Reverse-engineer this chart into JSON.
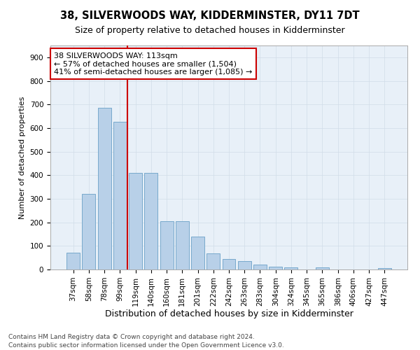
{
  "title": "38, SILVERWOODS WAY, KIDDERMINSTER, DY11 7DT",
  "subtitle": "Size of property relative to detached houses in Kidderminster",
  "xlabel": "Distribution of detached houses by size in Kidderminster",
  "ylabel": "Number of detached properties",
  "categories": [
    "37sqm",
    "58sqm",
    "78sqm",
    "99sqm",
    "119sqm",
    "140sqm",
    "160sqm",
    "181sqm",
    "201sqm",
    "222sqm",
    "242sqm",
    "263sqm",
    "283sqm",
    "304sqm",
    "324sqm",
    "345sqm",
    "365sqm",
    "386sqm",
    "406sqm",
    "427sqm",
    "447sqm"
  ],
  "values": [
    72,
    320,
    685,
    625,
    410,
    410,
    205,
    205,
    140,
    68,
    45,
    35,
    22,
    12,
    8,
    0,
    8,
    0,
    0,
    0,
    5
  ],
  "bar_color": "#b8d0e8",
  "bar_edge_color": "#6aa0c7",
  "vline_color": "#cc0000",
  "annotation_text": "38 SILVERWOODS WAY: 113sqm\n← 57% of detached houses are smaller (1,504)\n41% of semi-detached houses are larger (1,085) →",
  "annotation_box_color": "#ffffff",
  "annotation_box_edge_color": "#cc0000",
  "annotation_fontsize": 8,
  "grid_color": "#d0dce8",
  "background_color": "#e8f0f8",
  "footer_text": "Contains HM Land Registry data © Crown copyright and database right 2024.\nContains public sector information licensed under the Open Government Licence v3.0.",
  "ylim": [
    0,
    950
  ],
  "title_fontsize": 10.5,
  "subtitle_fontsize": 9,
  "xlabel_fontsize": 9,
  "ylabel_fontsize": 8,
  "tick_fontsize": 7.5,
  "footer_fontsize": 6.5
}
